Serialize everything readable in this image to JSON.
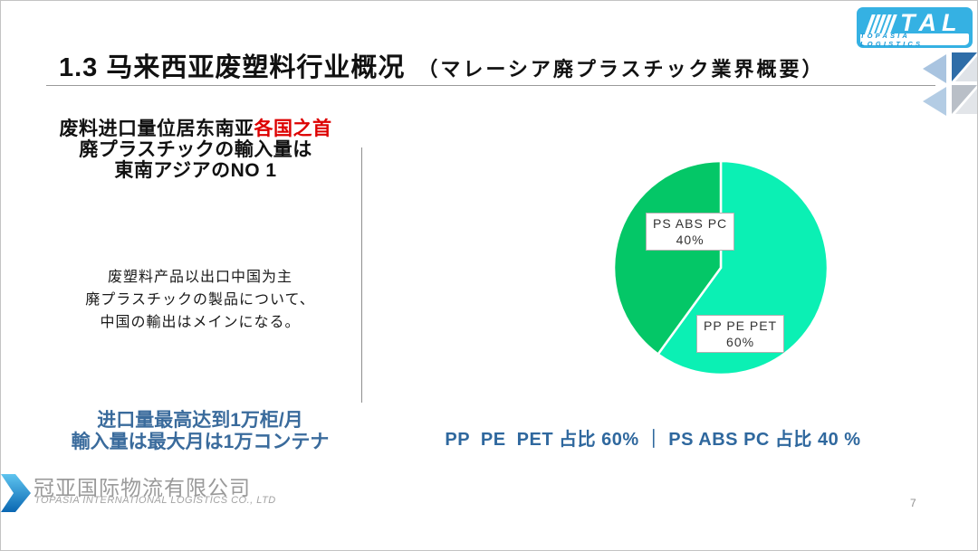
{
  "logo": {
    "word": "TAL",
    "tagline": "TOPASIA LOGISTICS",
    "bg_color": "#35b1e3"
  },
  "header": {
    "title_zh": "1.3 马来西亚废塑料行业概况",
    "title_jp": "（マレーシア廃プラスチック業界概要）"
  },
  "left_panel": {
    "headline_zh": "废料进口量位居东南亚",
    "headline_zh_red": "各国之首",
    "headline_jp_line1": "廃プラスチックの輸入量は",
    "headline_jp_line2": "東南アジアのNO 1",
    "body_line1": "废塑料产品以出口中国为主",
    "body_line2": "廃プラスチックの製品について、",
    "body_line3": "中国の輸出はメインになる。",
    "footer_line1": "进口量最高达到1万柜/月",
    "footer_line2": "輸入量は最大月は1万コンテナ"
  },
  "chart_data": {
    "type": "pie",
    "title": "",
    "direction": "clockwise",
    "start_angle_deg": 0,
    "legend": "none",
    "slices": [
      {
        "label": "PP PE PET",
        "value": 60,
        "pct_label": "60%",
        "color": "#0BF0B4"
      },
      {
        "label": "PS ABS PC",
        "value": 40,
        "pct_label": "40%",
        "color": "#04C767"
      }
    ],
    "caption": "PP  PE  PET 占比 60% ｜ PS ABS PC 占比 40 %"
  },
  "colors": {
    "accent_blue_text": "#2f689e",
    "red_emphasis": "#dd0000",
    "tal_blue": "#35b1e3"
  },
  "footer": {
    "company_zh": "冠亚国际物流有限公司",
    "company_en": "TOPASIA INTERNATIONAL LOGISTICS CO., LTD",
    "page_number": "7"
  }
}
